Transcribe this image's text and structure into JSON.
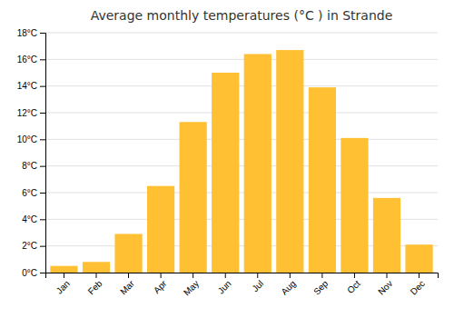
{
  "chart_data": {
    "type": "bar",
    "title": "Average monthly temperatures (°C ) in Strande",
    "categories": [
      "Jan",
      "Feb",
      "Mar",
      "Apr",
      "May",
      "Jun",
      "Jul",
      "Aug",
      "Sep",
      "Oct",
      "Nov",
      "Dec"
    ],
    "values": [
      0.5,
      0.8,
      2.9,
      6.5,
      11.3,
      15.0,
      16.4,
      16.7,
      13.9,
      10.1,
      5.6,
      2.1
    ],
    "color": "#FFC133",
    "ylim": [
      0,
      18
    ],
    "yticks": [
      {
        "value": 0,
        "label": "0°C"
      },
      {
        "value": 2,
        "label": "2°C"
      },
      {
        "value": 4,
        "label": "4°C"
      },
      {
        "value": 6,
        "label": "6°C"
      },
      {
        "value": 8,
        "label": "8°C"
      },
      {
        "value": 10,
        "label": "10°C"
      },
      {
        "value": 12,
        "label": "12°C"
      },
      {
        "value": 14,
        "label": "14°C"
      },
      {
        "value": 16,
        "label": "16°C"
      },
      {
        "value": 18,
        "label": "18°C"
      }
    ],
    "grid": true
  }
}
